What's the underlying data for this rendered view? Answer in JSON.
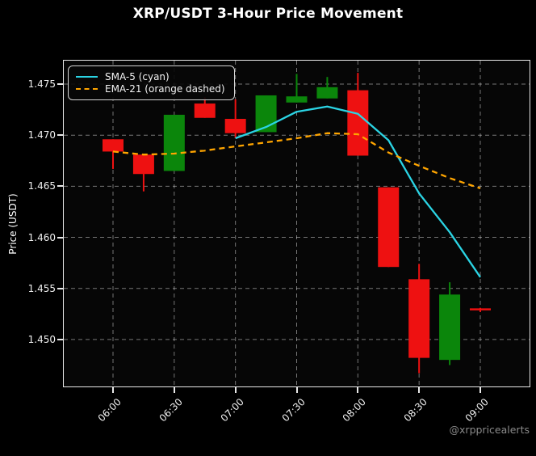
{
  "title": "XRP/USDT 3-Hour Price Movement",
  "watermark": "@xrppricealerts",
  "legend": [
    {
      "label": "SMA-5 (cyan)",
      "color": "#2bd4e4",
      "dash": null
    },
    {
      "label": "EMA-21 (orange dashed)",
      "color": "#ffa500",
      "dash": "7,5"
    }
  ],
  "colors": {
    "background": "#000000",
    "plot_background": "#060606",
    "candle_up": "#0b860b",
    "candle_down": "#ee1111",
    "grid": "rgba(255,255,255,0.45)",
    "spine": "#e8e8e8",
    "text": "#f0f0f0",
    "watermark_color": "#8a8a8a"
  },
  "chart_data": {
    "type": "candlestick",
    "title": "XRP/USDT 3-Hour Price Movement",
    "xlabel": "",
    "ylabel": "Price (USDT)",
    "grid": true,
    "legend_position": "upper left",
    "ylim": [
      1.4454,
      1.4773
    ],
    "y_ticks": [
      1.475,
      1.47,
      1.465,
      1.46,
      1.455,
      1.45
    ],
    "x_ticks": [
      "06:00",
      "06:30",
      "07:00",
      "07:30",
      "08:00",
      "08:30",
      "09:00"
    ],
    "times": [
      "06:00",
      "06:15",
      "06:30",
      "06:45",
      "07:00",
      "07:15",
      "07:30",
      "07:45",
      "08:00",
      "08:15",
      "08:30",
      "08:45",
      "09:00"
    ],
    "candles": [
      {
        "t": "06:00",
        "o": 1.4696,
        "h": 1.4696,
        "l": 1.4667,
        "c": 1.4684
      },
      {
        "t": "06:15",
        "o": 1.4681,
        "h": 1.4681,
        "l": 1.4645,
        "c": 1.4662
      },
      {
        "t": "06:30",
        "o": 1.4665,
        "h": 1.472,
        "l": 1.4665,
        "c": 1.472
      },
      {
        "t": "06:45",
        "o": 1.4731,
        "h": 1.4737,
        "l": 1.4717,
        "c": 1.4717
      },
      {
        "t": "07:00",
        "o": 1.4716,
        "h": 1.4735,
        "l": 1.4697,
        "c": 1.4702
      },
      {
        "t": "07:15",
        "o": 1.4703,
        "h": 1.4739,
        "l": 1.4703,
        "c": 1.4739
      },
      {
        "t": "07:30",
        "o": 1.4732,
        "h": 1.476,
        "l": 1.4732,
        "c": 1.4738
      },
      {
        "t": "07:45",
        "o": 1.4736,
        "h": 1.4757,
        "l": 1.4736,
        "c": 1.4747
      },
      {
        "t": "08:00",
        "o": 1.4744,
        "h": 1.4761,
        "l": 1.468,
        "c": 1.468
      },
      {
        "t": "08:15",
        "o": 1.4649,
        "h": 1.4649,
        "l": 1.4571,
        "c": 1.4571
      },
      {
        "t": "08:30",
        "o": 1.4559,
        "h": 1.4574,
        "l": 1.4467,
        "c": 1.4482
      },
      {
        "t": "08:45",
        "o": 1.448,
        "h": 1.4556,
        "l": 1.4475,
        "c": 1.4544
      },
      {
        "t": "09:00",
        "o": 1.453,
        "h": 1.4531,
        "l": 1.4527,
        "c": 1.4529
      }
    ],
    "series": [
      {
        "name": "SMA-5 (cyan)",
        "color": "#2bd4e4",
        "dash": null,
        "values": [
          null,
          null,
          null,
          null,
          1.4697,
          1.4708,
          1.4723,
          1.4728,
          1.4721,
          1.4695,
          1.4643,
          1.4605,
          1.4561
        ]
      },
      {
        "name": "EMA-21 (orange dashed)",
        "color": "#ffa500",
        "dash": "7,5",
        "values": [
          1.4684,
          1.4681,
          1.4682,
          1.4685,
          1.4689,
          1.4693,
          1.4697,
          1.4702,
          1.4701,
          1.4683,
          1.467,
          1.4658,
          1.4648
        ]
      }
    ]
  }
}
